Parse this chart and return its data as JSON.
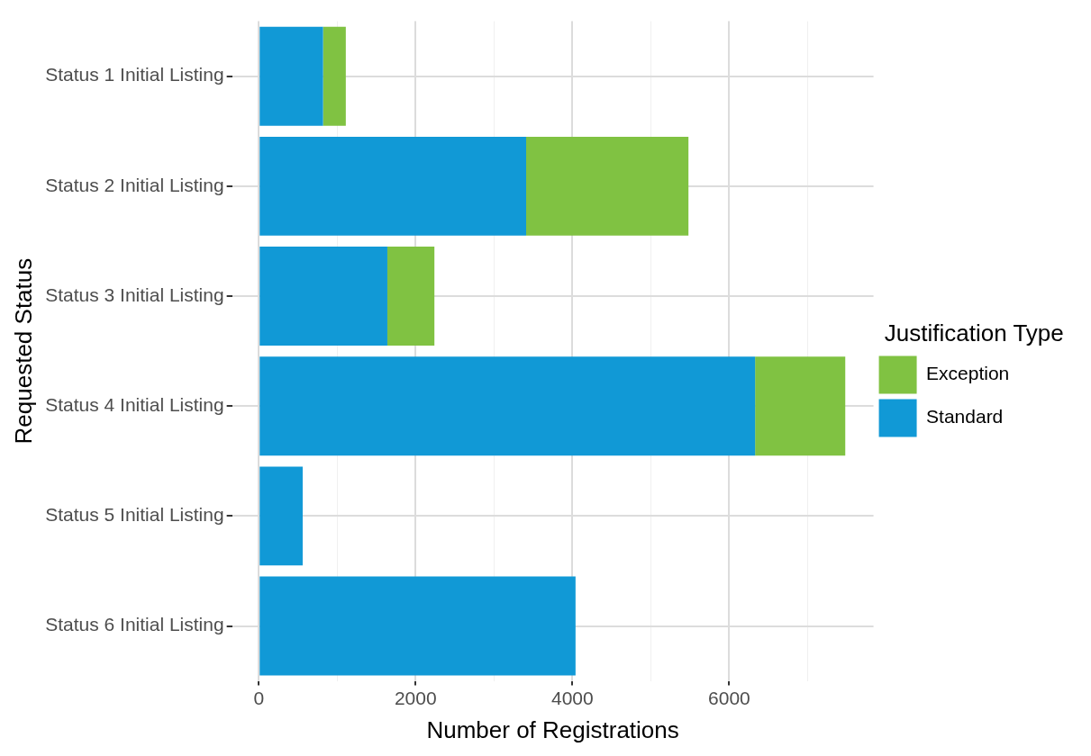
{
  "chart_data": {
    "type": "bar",
    "orientation": "horizontal",
    "stacked": true,
    "xlabel": "Number of Registrations",
    "ylabel": "Requested Status",
    "legend_title": "Justification Type",
    "legend": "right",
    "grid": true,
    "categories": [
      "Status 1 Initial Listing",
      "Status 2 Initial Listing",
      "Status 3 Initial Listing",
      "Status 4 Initial Listing",
      "Status 5 Initial Listing",
      "Status 6 Initial Listing"
    ],
    "series": [
      {
        "name": "Standard",
        "color": "#1199d6",
        "values": [
          820,
          3410,
          1640,
          6330,
          560,
          4040
        ]
      },
      {
        "name": "Exception",
        "color": "#80c242",
        "values": [
          290,
          2070,
          600,
          1150,
          null,
          null
        ]
      }
    ],
    "xlim": [
      -340,
      7840
    ],
    "xticks": [
      0,
      {
        "value": 1000,
        "label": null
      },
      2000,
      {
        "value": 3000,
        "label": null
      },
      4000,
      {
        "value": 5000,
        "label": null
      },
      6000,
      {
        "value": 7000,
        "label": null
      }
    ]
  }
}
